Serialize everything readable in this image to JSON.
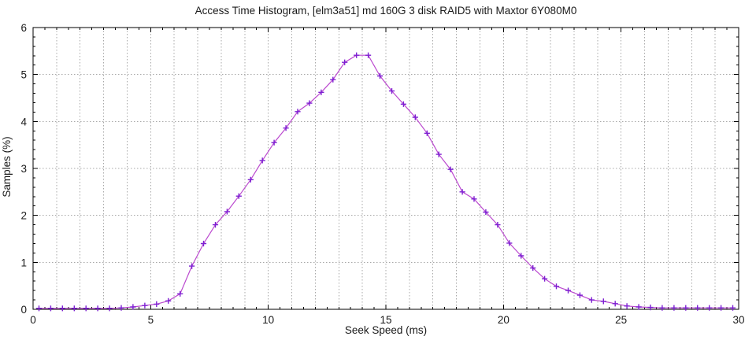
{
  "page": {
    "background": "#ffffff"
  },
  "chart_data": {
    "type": "line",
    "title": "Access Time Histogram, [elm3a51] md 160G 3 disk RAID5 with Maxtor 6Y080M0",
    "xlabel": "Seek Speed (ms)",
    "ylabel": "Samples (%)",
    "xlim": [
      0,
      30
    ],
    "ylim": [
      0,
      6
    ],
    "xticks": [
      0,
      5,
      10,
      15,
      20,
      25,
      30
    ],
    "yticks": [
      0,
      1,
      2,
      3,
      4,
      5,
      6
    ],
    "x_minor_step": 0.5,
    "y_minor_step": 0.2,
    "grid": {
      "show": true,
      "x_step": 1,
      "y_step": 1,
      "color": "#a8a8a8",
      "dash": "1.5,2.5"
    },
    "legend": "none",
    "series": [
      {
        "name": "access-time-samples",
        "line_color": "#bb49cf",
        "marker": "plus",
        "marker_color": "#7d1fd2",
        "x": [
          0.25,
          0.75,
          1.25,
          1.75,
          2.25,
          2.75,
          3.25,
          3.75,
          4.25,
          4.75,
          5.25,
          5.75,
          6.25,
          6.75,
          7.25,
          7.75,
          8.25,
          8.75,
          9.25,
          9.75,
          10.25,
          10.75,
          11.25,
          11.75,
          12.25,
          12.75,
          13.25,
          13.75,
          14.25,
          14.75,
          15.25,
          15.75,
          16.25,
          16.75,
          17.25,
          17.75,
          18.25,
          18.75,
          19.25,
          19.75,
          20.25,
          20.75,
          21.25,
          21.75,
          22.25,
          22.75,
          23.25,
          23.75,
          24.25,
          24.75,
          25.25,
          25.75,
          26.25,
          26.75,
          27.25,
          27.75,
          28.25,
          28.75,
          29.25,
          29.75
        ],
        "y": [
          0.02,
          0.02,
          0.02,
          0.02,
          0.02,
          0.02,
          0.02,
          0.03,
          0.05,
          0.08,
          0.11,
          0.18,
          0.33,
          0.92,
          1.4,
          1.8,
          2.08,
          2.41,
          2.76,
          3.17,
          3.55,
          3.86,
          4.21,
          4.39,
          4.62,
          4.89,
          5.26,
          5.41,
          5.41,
          4.97,
          4.65,
          4.37,
          4.09,
          3.75,
          3.3,
          2.98,
          2.5,
          2.35,
          2.07,
          1.8,
          1.41,
          1.14,
          0.88,
          0.65,
          0.49,
          0.4,
          0.3,
          0.2,
          0.17,
          0.12,
          0.07,
          0.05,
          0.04,
          0.03,
          0.03,
          0.03,
          0.03,
          0.03,
          0.03,
          0.03
        ]
      }
    ]
  }
}
